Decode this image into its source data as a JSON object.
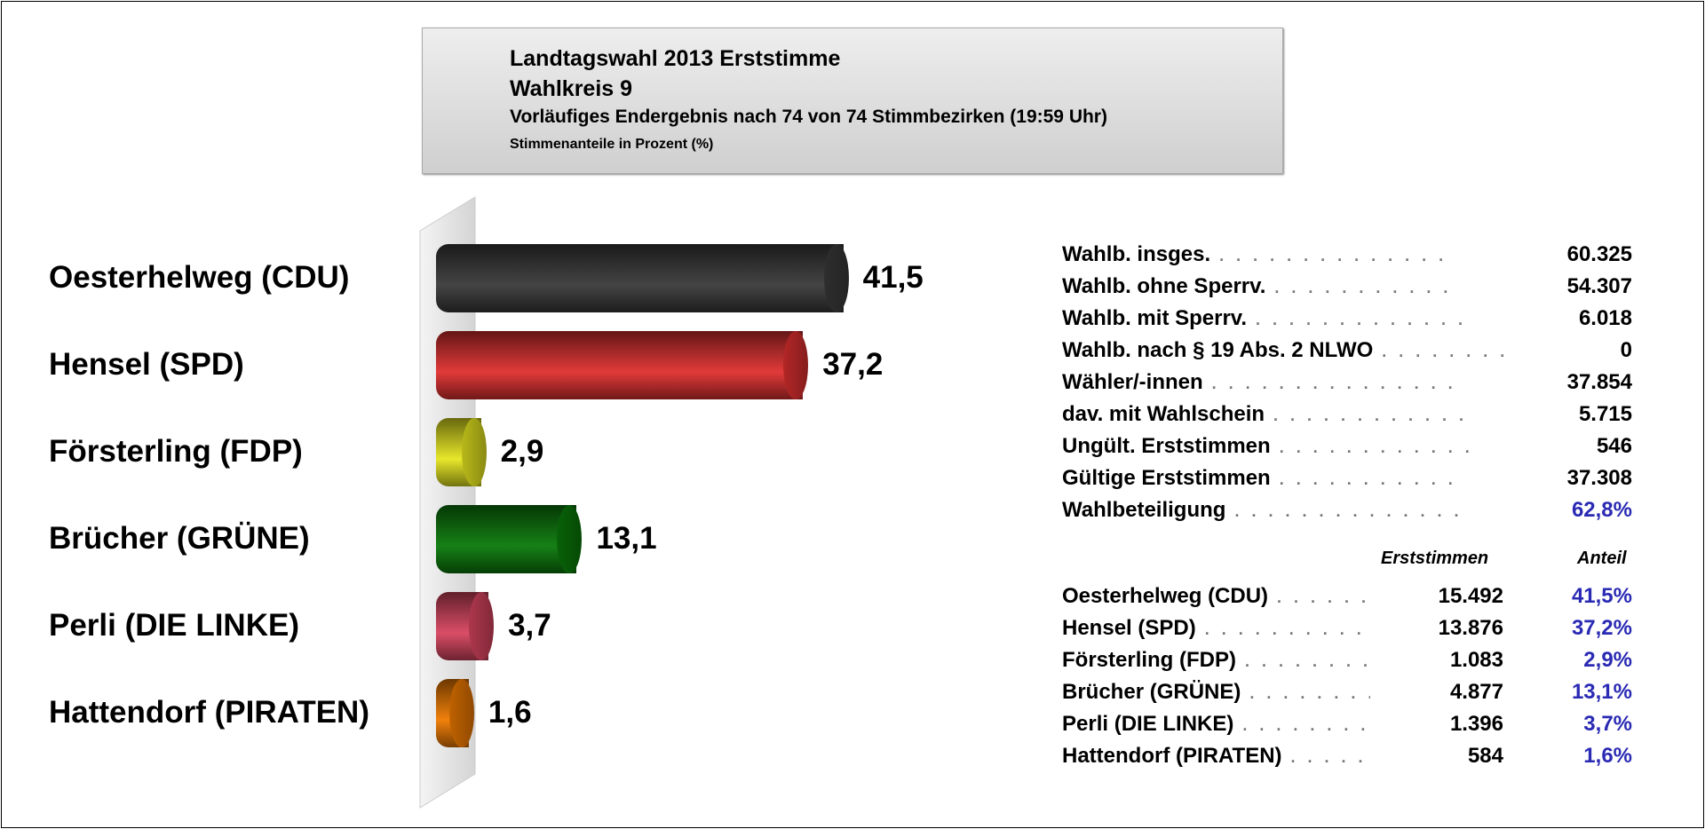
{
  "header": {
    "title": "Landtagswahl 2013 Erststimme",
    "district": "Wahlkreis 9",
    "status": "Vorläufiges Endergebnis nach 74 von 74 Stimmbezirken (19:59 Uhr)",
    "unit": "Stimmenanteile in Prozent (%)"
  },
  "chart_data": {
    "type": "bar",
    "orientation": "horizontal",
    "style": "3d-cylinder",
    "categories": [
      "Oesterhelweg (CDU)",
      "Hensel (SPD)",
      "Försterling (FDP)",
      "Brücher (GRÜNE)",
      "Perli (DIE LINKE)",
      "Hattendorf (PIRATEN)"
    ],
    "values": [
      41.5,
      37.2,
      2.9,
      13.1,
      3.7,
      1.6
    ],
    "value_labels": [
      "41,5",
      "37,2",
      "2,9",
      "13,1",
      "3,7",
      "1,6"
    ],
    "colors": [
      "#3a3a3a",
      "#e03030",
      "#e6e620",
      "#0a7a0a",
      "#d8455f",
      "#f07a00"
    ],
    "grid": false
  },
  "stats": [
    {
      "label": "Wahlb. insges.",
      "value": "60.325"
    },
    {
      "label": "Wahlb. ohne Sperrv.",
      "value": "54.307"
    },
    {
      "label": "Wahlb. mit Sperrv.",
      "value": "6.018"
    },
    {
      "label": "Wahlb. nach § 19 Abs. 2 NLWO",
      "value": "0"
    },
    {
      "label": "Wähler/-innen",
      "value": "37.854"
    },
    {
      "label": "dav. mit Wahlschein",
      "value": "5.715"
    },
    {
      "label": "Ungült. Erststimmen",
      "value": "546"
    },
    {
      "label": "Gültige Erststimmen",
      "value": "37.308"
    },
    {
      "label": "Wahlbeteiligung",
      "value": "62,8%",
      "highlight": true
    }
  ],
  "results_table": {
    "col_votes": "Erststimmen",
    "col_share": "Anteil",
    "rows": [
      {
        "name": "Oesterhelweg (CDU)",
        "votes": "15.492",
        "share": "41,5%"
      },
      {
        "name": "Hensel (SPD)",
        "votes": "13.876",
        "share": "37,2%"
      },
      {
        "name": "Försterling (FDP)",
        "votes": "1.083",
        "share": "2,9%"
      },
      {
        "name": "Brücher (GRÜNE)",
        "votes": "4.877",
        "share": "13,1%"
      },
      {
        "name": "Perli (DIE LINKE)",
        "votes": "1.396",
        "share": "3,7%"
      },
      {
        "name": "Hattendorf (PIRATEN)",
        "votes": "584",
        "share": "1,6%"
      }
    ]
  },
  "colors": {
    "accent_blue": "#2a2ab4"
  }
}
